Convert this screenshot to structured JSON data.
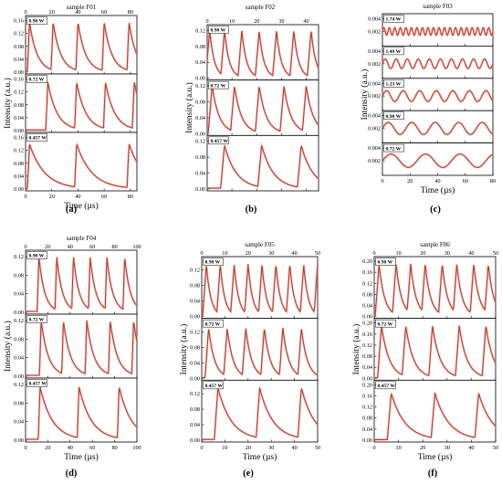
{
  "chart_data": [
    {
      "id": "a",
      "type": "line",
      "title": "sample F01",
      "caption": "(a)",
      "xlabel": "Time (µs)",
      "ylabel": "Intensity (a.u.)",
      "xlim": [
        0,
        85
      ],
      "xticks": [
        0,
        20,
        40,
        60,
        80
      ],
      "ylim": [
        0,
        0.17
      ],
      "yticks": [
        "0.00",
        "0.04",
        "0.08",
        "0.12",
        "0.16"
      ],
      "series": [
        {
          "name": "0.98 W",
          "peaks": [
            3,
            21,
            40,
            60,
            79
          ],
          "amplitude": 0.155
        },
        {
          "name": "0.72 W",
          "peaks": [
            17,
            39,
            61,
            83
          ],
          "amplitude": 0.15
        },
        {
          "name": "0.457 W",
          "peaks": [
            3,
            39,
            79
          ],
          "amplitude": 0.14
        }
      ]
    },
    {
      "id": "b",
      "type": "line",
      "title": "sample F02",
      "caption": "(b)",
      "xlabel": "Time (µs)",
      "ylabel": "Intensity (a.u.)",
      "xlim": [
        0,
        45
      ],
      "xticks": [
        0,
        10,
        20,
        30,
        40
      ],
      "ylim": [
        0,
        0.13
      ],
      "yticks": [
        "0.00",
        "0.04",
        "0.08",
        "0.12"
      ],
      "series": [
        {
          "name": "0.98 W",
          "peaks": [
            1,
            7,
            14,
            21,
            28,
            35,
            42
          ],
          "amplitude": 0.12
        },
        {
          "name": "0.72 W",
          "peaks": [
            2,
            11,
            21,
            31,
            40
          ],
          "amplitude": 0.12
        },
        {
          "name": "0.457 W",
          "peaks": [
            7,
            22,
            38
          ],
          "amplitude": 0.11
        }
      ]
    },
    {
      "id": "c",
      "type": "line",
      "title": "sample F03",
      "caption": "(c)",
      "xlabel": "Time (µs)",
      "ylabel": "Intensity (a.u.)",
      "xlim": [
        0,
        80
      ],
      "xticks": [
        0,
        20,
        40,
        60,
        80
      ],
      "ylim": [
        0,
        0.0045
      ],
      "yticks": [
        "0.002",
        "0.004"
      ],
      "series": [
        {
          "name": "1.74 W",
          "period": 4,
          "amplitude": 0.0012,
          "mean": 0.002
        },
        {
          "name": "1.49 W",
          "period": 8,
          "amplitude": 0.0015,
          "mean": 0.002
        },
        {
          "name": "1.23 W",
          "period": 12,
          "amplitude": 0.0017,
          "mean": 0.002
        },
        {
          "name": "0.98 W",
          "period": 17,
          "amplitude": 0.0019,
          "mean": 0.002
        },
        {
          "name": "0.72 W",
          "period": 25,
          "amplitude": 0.0021,
          "mean": 0.002
        }
      ]
    },
    {
      "id": "d",
      "type": "line",
      "title": "sample F04",
      "caption": "(d)",
      "xlabel": "Time (µs)",
      "ylabel": "Intensity (a.u.)",
      "xlim": [
        0,
        100
      ],
      "xticks": [
        0,
        20,
        40,
        60,
        80,
        100
      ],
      "ylim": [
        0,
        0.13
      ],
      "yticks": [
        "0.00",
        "0.04",
        "0.08",
        "0.12"
      ],
      "series": [
        {
          "name": "0.98 W",
          "peaks": [
            12,
            28,
            43,
            58,
            73,
            89
          ],
          "amplitude": 0.12
        },
        {
          "name": "0.72 W",
          "peaks": [
            14,
            34,
            55,
            76,
            97
          ],
          "amplitude": 0.12
        },
        {
          "name": "0.457 W",
          "peaks": [
            13,
            48,
            84
          ],
          "amplitude": 0.115
        }
      ]
    },
    {
      "id": "e",
      "type": "line",
      "title": "sample F05",
      "caption": "(e)",
      "xlabel": "Time (µs)",
      "ylabel": "Intensity (a.u.)",
      "xlim": [
        0,
        50
      ],
      "xticks": [
        0,
        10,
        20,
        30,
        40,
        50
      ],
      "ylim": [
        0,
        0.15
      ],
      "yticks": [
        "0.00",
        "0.04",
        "0.08",
        "0.12"
      ],
      "series": [
        {
          "name": "0.98 W",
          "peaks": [
            2,
            8,
            14,
            20,
            26,
            32,
            38,
            44,
            50
          ],
          "amplitude": 0.135
        },
        {
          "name": "0.72 W",
          "peaks": [
            3,
            11,
            19,
            27,
            35,
            43
          ],
          "amplitude": 0.13
        },
        {
          "name": "0.457 W",
          "peaks": [
            7,
            25,
            43
          ],
          "amplitude": 0.135
        }
      ]
    },
    {
      "id": "f",
      "type": "line",
      "title": "sample F06",
      "caption": "(f)",
      "xlabel": "Time (µs)",
      "ylabel": "Intensity (a.u.)",
      "xlim": [
        0,
        50
      ],
      "xticks": [
        0,
        10,
        20,
        30,
        40,
        50
      ],
      "ylim": [
        0,
        0.21
      ],
      "yticks": [
        "0.00",
        "0.04",
        "0.08",
        "0.12",
        "0.16",
        "0.20"
      ],
      "series": [
        {
          "name": "0.98 W",
          "peaks": [
            2,
            9,
            15,
            21,
            28,
            34,
            41,
            47
          ],
          "amplitude": 0.19
        },
        {
          "name": "0.72 W",
          "peaks": [
            3,
            13,
            24,
            35,
            46
          ],
          "amplitude": 0.19
        },
        {
          "name": "0.457 W",
          "peaks": [
            7,
            25,
            43
          ],
          "amplitude": 0.17
        }
      ]
    }
  ]
}
